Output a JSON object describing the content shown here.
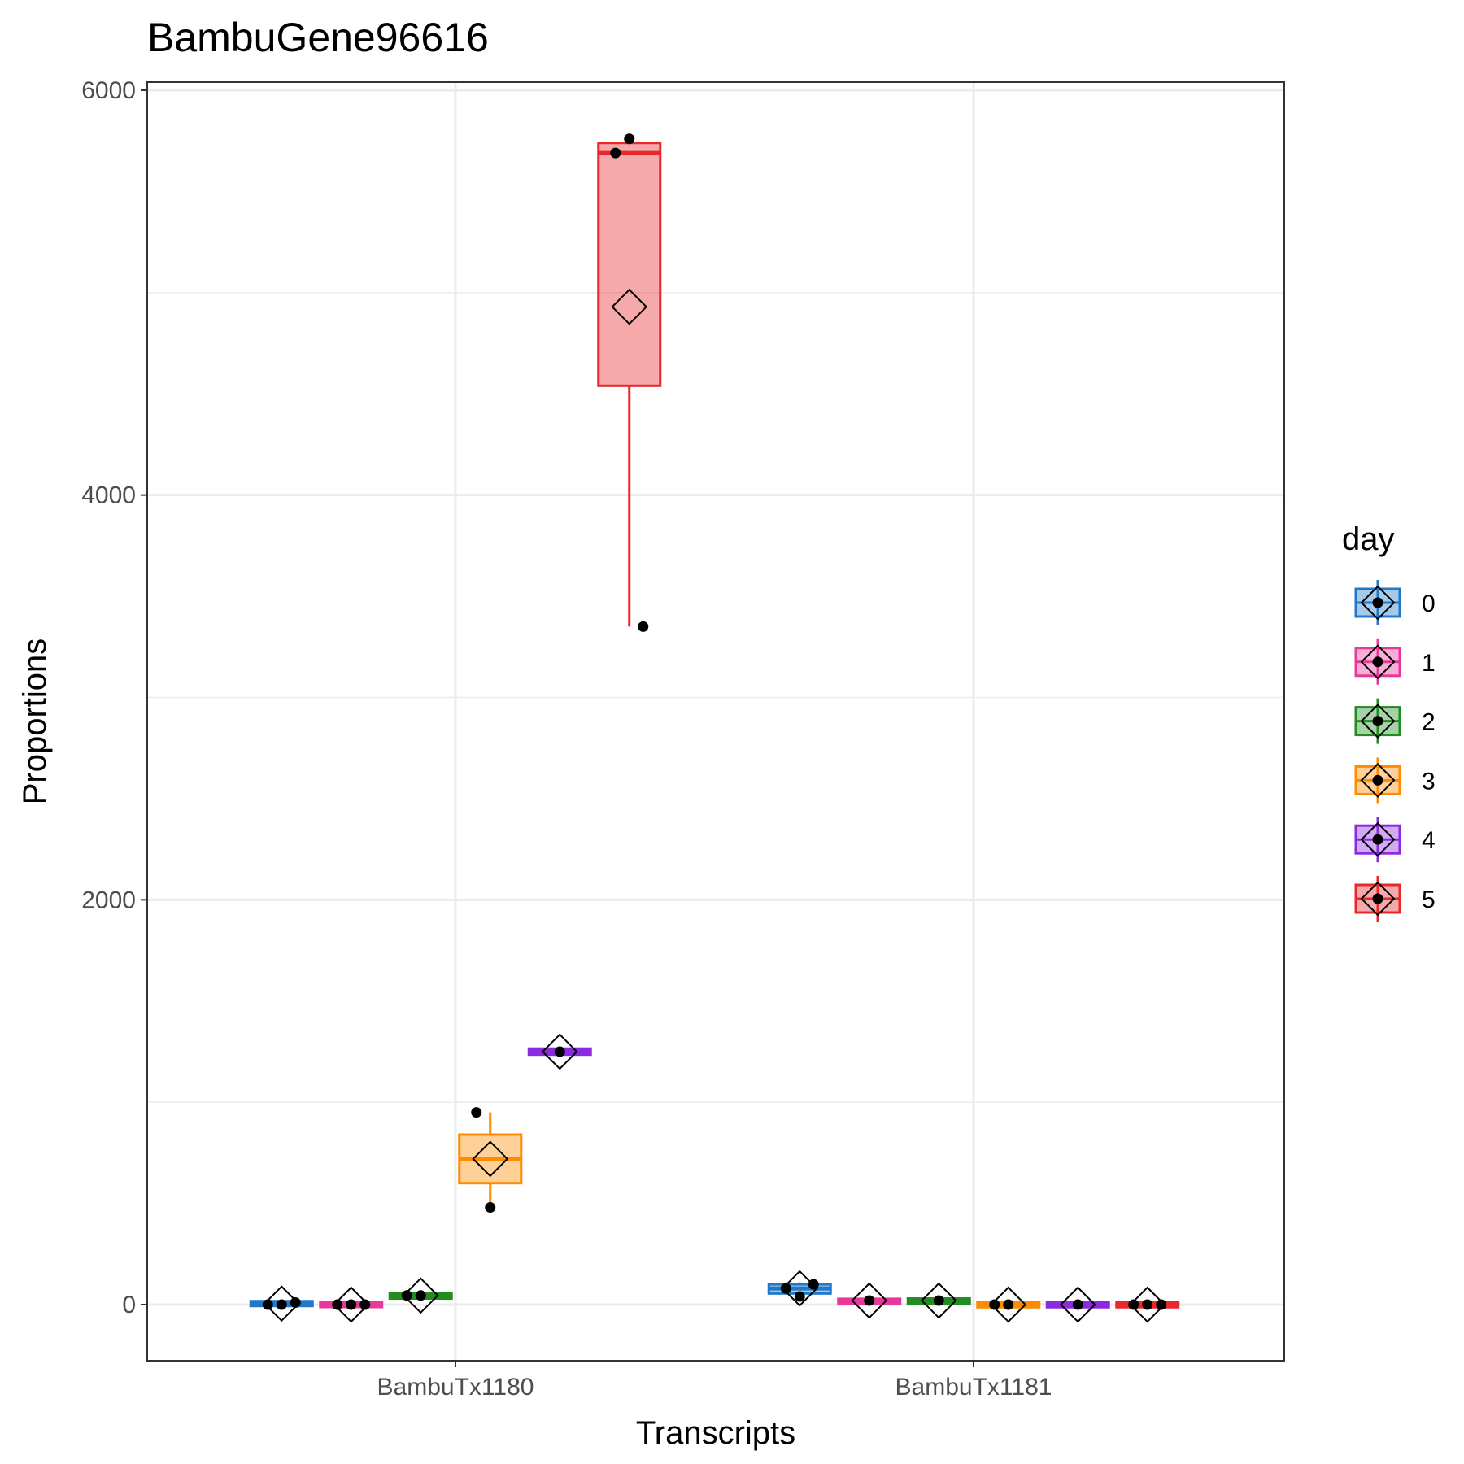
{
  "chart_data": {
    "type": "boxplot",
    "title": "BambuGene96616",
    "xlabel": "Transcripts",
    "ylabel": "Proportions",
    "categories": [
      "BambuTx1180",
      "BambuTx1181"
    ],
    "ylim": [
      -280,
      6050
    ],
    "yticks": [
      0,
      2000,
      4000,
      6000
    ],
    "ytick_labels": [
      "0",
      "2000",
      "4000",
      "6000"
    ],
    "grid": true,
    "legend": {
      "title": "day",
      "position": "right",
      "labels": [
        "0",
        "1",
        "2",
        "3",
        "4",
        "5"
      ]
    },
    "colors": {
      "0": "#1f78c8",
      "1": "#e8399b",
      "2": "#228b22",
      "3": "#ff8c00",
      "4": "#8a2be2",
      "5": "#e8282b"
    },
    "series": [
      {
        "day": "0",
        "category": "BambuTx1180",
        "q1": 0,
        "median": 5,
        "q3": 10,
        "whisker_low": 0,
        "whisker_high": 12,
        "mean": 5,
        "points": [
          0,
          0,
          10
        ]
      },
      {
        "day": "1",
        "category": "BambuTx1180",
        "q1": -4,
        "median": 0,
        "q3": 4,
        "whisker_low": -4,
        "whisker_high": 4,
        "mean": 0,
        "points": [
          0,
          0,
          0
        ]
      },
      {
        "day": "2",
        "category": "BambuTx1180",
        "q1": 30,
        "median": 45,
        "q3": 55,
        "whisker_low": 30,
        "whisker_high": 55,
        "mean": 45,
        "points": [
          45,
          45
        ]
      },
      {
        "day": "3",
        "category": "BambuTx1180",
        "q1": 600,
        "median": 720,
        "q3": 840,
        "whisker_low": 480,
        "whisker_high": 950,
        "mean": 720,
        "points": [
          950,
          480
        ]
      },
      {
        "day": "4",
        "category": "BambuTx1180",
        "q1": 1235,
        "median": 1250,
        "q3": 1265,
        "whisker_low": 1235,
        "whisker_high": 1265,
        "mean": 1250,
        "points": [
          1250
        ]
      },
      {
        "day": "5",
        "category": "BambuTx1180",
        "q1": 4540,
        "median": 5690,
        "q3": 5740,
        "whisker_low": 3350,
        "whisker_high": 5770,
        "mean": 4930,
        "points": [
          5690,
          5760,
          3350
        ]
      },
      {
        "day": "0",
        "category": "BambuTx1181",
        "q1": 55,
        "median": 80,
        "q3": 100,
        "whisker_low": 35,
        "whisker_high": 110,
        "mean": 80,
        "points": [
          80,
          40,
          100
        ]
      },
      {
        "day": "1",
        "category": "BambuTx1181",
        "q1": 5,
        "median": 20,
        "q3": 28,
        "whisker_low": 5,
        "whisker_high": 28,
        "mean": 20,
        "points": [
          20
        ]
      },
      {
        "day": "2",
        "category": "BambuTx1181",
        "q1": 5,
        "median": 20,
        "q3": 30,
        "whisker_low": 5,
        "whisker_high": 30,
        "mean": 20,
        "points": [
          20
        ]
      },
      {
        "day": "3",
        "category": "BambuTx1181",
        "q1": -6,
        "median": 0,
        "q3": 4,
        "whisker_low": -6,
        "whisker_high": 4,
        "mean": 0,
        "points": [
          0,
          0
        ]
      },
      {
        "day": "4",
        "category": "BambuTx1181",
        "q1": -6,
        "median": 0,
        "q3": 4,
        "whisker_low": -6,
        "whisker_high": 4,
        "mean": 0,
        "points": [
          0
        ]
      },
      {
        "day": "5",
        "category": "BambuTx1181",
        "q1": -6,
        "median": 0,
        "q3": 4,
        "whisker_low": -6,
        "whisker_high": 4,
        "mean": 0,
        "points": [
          0,
          0,
          0
        ]
      }
    ]
  }
}
